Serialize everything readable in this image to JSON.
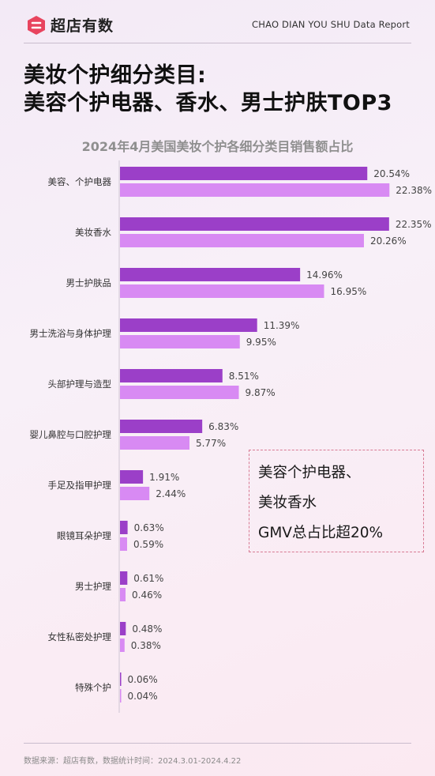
{
  "header": {
    "brand": "超店有数",
    "report_label": "CHAO DIAN YOU SHU Data Report",
    "logo_icon": "hexagon-logo-icon",
    "brand_color": "#e8445e"
  },
  "title": {
    "line1": "美妆个护细分类目:",
    "line2": "美容个护电器、香水、男士护肤TOP3"
  },
  "chart_data": {
    "type": "bar",
    "orientation": "horizontal",
    "title": "2024年4月美国美妆个护各细分类目销售额占比",
    "categories": [
      "美容、个护电器",
      "美妆香水",
      "男士护肤品",
      "男士洗浴与身体护理",
      "头部护理与造型",
      "婴儿鼻腔与口腔护理",
      "手足及指甲护理",
      "眼镜耳朵护理",
      "男士护理",
      "女性私密处护理",
      "特殊个护"
    ],
    "series": [
      {
        "color": "#9b3fc8",
        "values": [
          20.54,
          22.35,
          14.96,
          11.39,
          8.51,
          6.83,
          1.91,
          0.63,
          0.61,
          0.48,
          0.06
        ],
        "labels": [
          "20.54%",
          "22.35%",
          "14.96%",
          "11.39%",
          "8.51%",
          "6.83%",
          "1.91%",
          "0.63%",
          "0.61%",
          "0.48%",
          "0.06%"
        ]
      },
      {
        "color": "#d88af3",
        "values": [
          22.38,
          20.26,
          16.95,
          9.95,
          9.87,
          5.77,
          2.44,
          0.59,
          0.46,
          0.38,
          0.04
        ],
        "labels": [
          "22.38%",
          "20.26%",
          "16.95%",
          "9.95%",
          "9.87%",
          "5.77%",
          "2.44%",
          "0.59%",
          "0.46%",
          "0.38%",
          "0.04%"
        ]
      }
    ],
    "grid": false,
    "legend": "none"
  },
  "callout": {
    "line1": "美容个护电器、",
    "line2": "美妆香水",
    "line3": "GMV总占比超20%",
    "border_color": "#d87a93"
  },
  "footer": {
    "source": "数据来源：超店有数，数据统计时间：2024.3.01-2024.4.22"
  }
}
